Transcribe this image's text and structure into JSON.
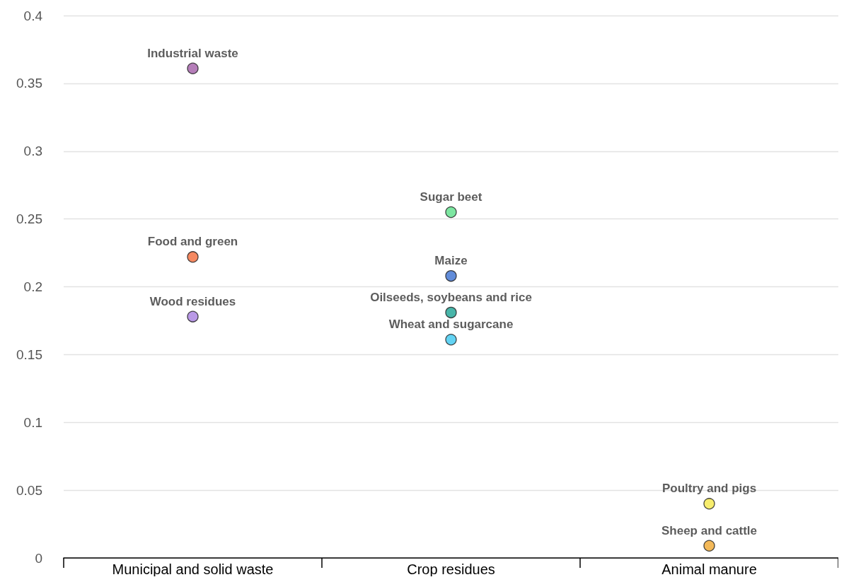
{
  "chart_data": {
    "type": "scatter",
    "categories": [
      "Municipal and solid waste",
      "Crop residues",
      "Animal manure"
    ],
    "ylim": [
      0,
      0.4
    ],
    "yticks": [
      0,
      0.05,
      0.1,
      0.15,
      0.2,
      0.25,
      0.3,
      0.35,
      0.4
    ],
    "grid": "y",
    "legend": false,
    "marker": "circle",
    "series": [
      {
        "name": "Industrial waste",
        "color": "#a35ea8",
        "x": [
          "Municipal and solid waste"
        ],
        "values": [
          0.361
        ]
      },
      {
        "name": "Food and green",
        "color": "#f26b3a",
        "x": [
          "Municipal and solid waste"
        ],
        "values": [
          0.222
        ]
      },
      {
        "name": "Wood residues",
        "color": "#a77fe0",
        "x": [
          "Municipal and solid waste"
        ],
        "values": [
          0.178
        ]
      },
      {
        "name": "Sugar beet",
        "color": "#5de08a",
        "x": [
          "Crop residues"
        ],
        "values": [
          0.255
        ]
      },
      {
        "name": "Maize",
        "color": "#3a6fd0",
        "x": [
          "Crop residues"
        ],
        "values": [
          0.208
        ]
      },
      {
        "name": "Oilseeds, soybeans and rice",
        "color": "#1aa394",
        "x": [
          "Crop residues"
        ],
        "values": [
          0.181
        ]
      },
      {
        "name": "Wheat and sugarcane",
        "color": "#3cc8f0",
        "x": [
          "Crop residues"
        ],
        "values": [
          0.161
        ]
      },
      {
        "name": "Poultry and pigs",
        "color": "#f5e94a",
        "x": [
          "Animal manure"
        ],
        "values": [
          0.04
        ]
      },
      {
        "name": "Sheep and cattle",
        "color": "#f0a830",
        "x": [
          "Animal manure"
        ],
        "values": [
          0.009
        ]
      }
    ]
  }
}
